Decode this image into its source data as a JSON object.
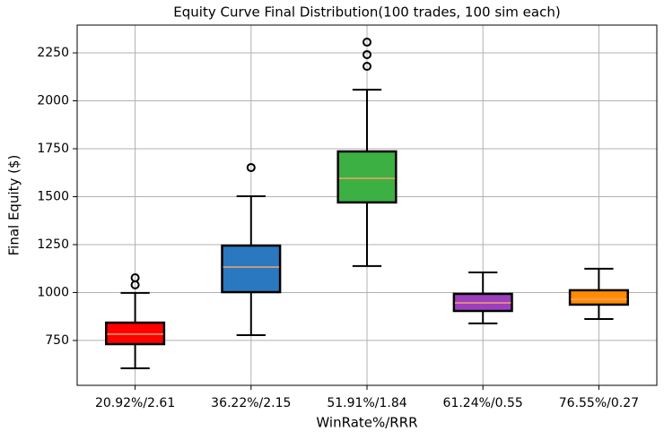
{
  "chart_data": {
    "type": "box",
    "title": "Equity Curve Final Distribution(100 trades, 100 sim each)",
    "x_label": "WinRate%/RRR",
    "y_label": "Final Equity ($)",
    "categories": [
      "20.92%/2.61",
      "36.22%/2.15",
      "51.91%/1.84",
      "61.24%/0.55",
      "76.55%/0.27"
    ],
    "boxes": [
      {
        "whislo": 605,
        "q1": 731,
        "med": 783,
        "q3": 843,
        "whishi": 998,
        "fliers": [
          1040,
          1077
        ],
        "color": "#ff0000"
      },
      {
        "whislo": 778,
        "q1": 1002,
        "med": 1133,
        "q3": 1245,
        "whishi": 1502,
        "fliers": [
          1652
        ],
        "color": "#2a78c0"
      },
      {
        "whislo": 1138,
        "q1": 1470,
        "med": 1596,
        "q3": 1736,
        "whishi": 2058,
        "fliers": [
          2180,
          2241,
          2306
        ],
        "color": "#3cb043"
      },
      {
        "whislo": 839,
        "q1": 904,
        "med": 946,
        "q3": 993,
        "whishi": 1105,
        "fliers": [],
        "color": "#9b3fbf"
      },
      {
        "whislo": 862,
        "q1": 937,
        "med": 965,
        "q3": 1012,
        "whishi": 1124,
        "fliers": [],
        "color": "#ff8c00"
      }
    ],
    "median_color": "#f5a26b",
    "ylim": [
      516,
      2395
    ],
    "yticks": [
      750,
      1000,
      1250,
      1500,
      1750,
      2000,
      2250
    ],
    "grid": true
  }
}
